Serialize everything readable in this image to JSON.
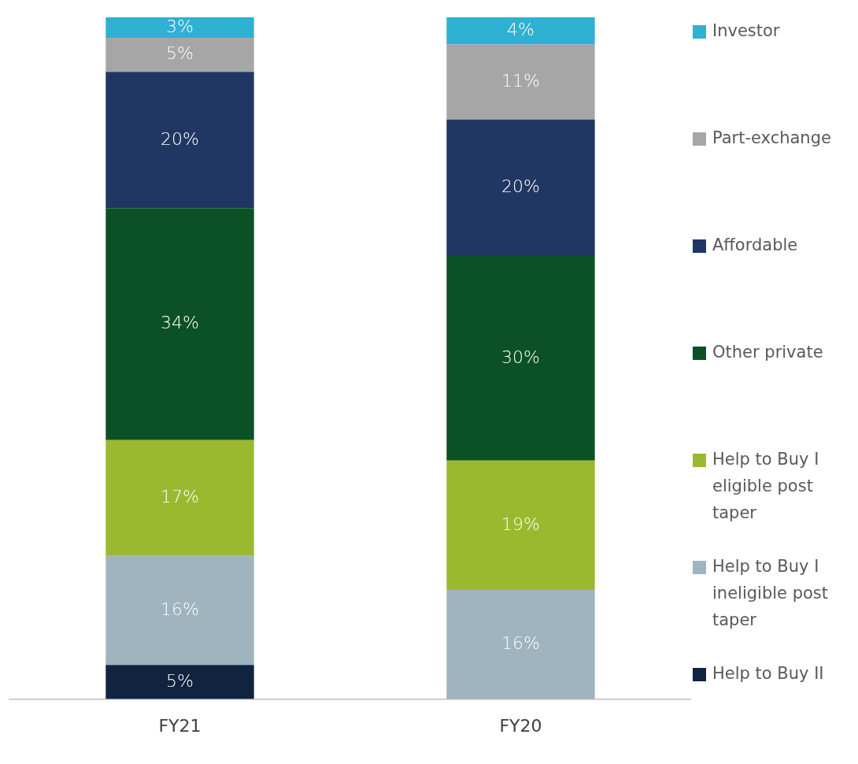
{
  "chart_data": {
    "type": "bar",
    "stacked": true,
    "categories": [
      "FY21",
      "FY20"
    ],
    "legend": "right",
    "grid": false,
    "series": [
      {
        "name": "Help to Buy II",
        "color": "#10233f",
        "values": [
          5,
          null
        ],
        "value_labels": [
          "5%",
          null
        ]
      },
      {
        "name": "Help to Buy I ineligible post taper",
        "color": "#9fb4bf",
        "values": [
          16,
          16
        ],
        "value_labels": [
          "16%",
          "16%"
        ]
      },
      {
        "name": "Help to Buy I eligible post taper",
        "color": "#9bb92f",
        "values": [
          17,
          19
        ],
        "value_labels": [
          "17%",
          "19%"
        ]
      },
      {
        "name": "Other private",
        "color": "#0b5125",
        "values": [
          34,
          30
        ],
        "value_labels": [
          "34%",
          "30%"
        ]
      },
      {
        "name": "Affordable",
        "color": "#213763",
        "values": [
          20,
          20
        ],
        "value_labels": [
          "20%",
          "20%"
        ]
      },
      {
        "name": "Part-exchange",
        "color": "#a6a6a6",
        "values": [
          5,
          11
        ],
        "value_labels": [
          "5%",
          "11%"
        ]
      },
      {
        "name": "Investor",
        "color": "#2eb1d3",
        "values": [
          3,
          4
        ],
        "value_labels": [
          "3%",
          "4%"
        ]
      }
    ]
  }
}
